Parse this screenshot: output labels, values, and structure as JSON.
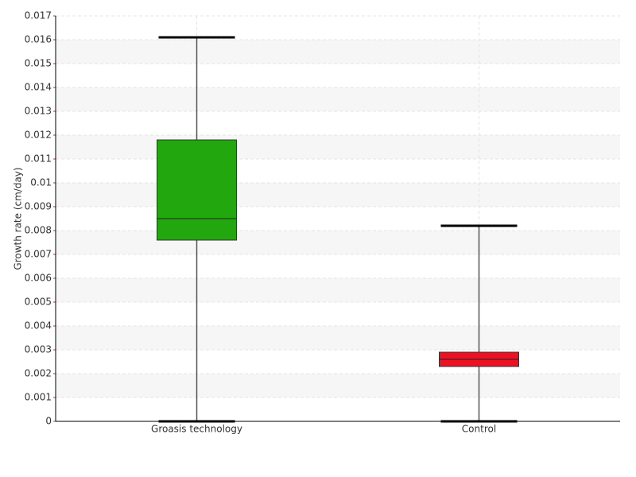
{
  "chart_data": {
    "type": "box",
    "y_label": "Growth rate (cm/day)",
    "categories": [
      "Groasis technology",
      "Control"
    ],
    "boxes": [
      {
        "min": 0,
        "q1": 0.0076,
        "median": 0.0085,
        "q3": 0.0118,
        "max": 0.0161,
        "color": "#22a80e"
      },
      {
        "min": 0,
        "q1": 0.0023,
        "median": 0.0026,
        "q3": 0.0029,
        "max": 0.0082,
        "color": "#ee1123"
      }
    ],
    "ylim": [
      0,
      0.017
    ],
    "yticks": [
      0,
      0.001,
      0.002,
      0.003,
      0.004,
      0.005,
      0.006,
      0.007,
      0.008,
      0.009,
      0.01,
      0.011,
      0.012,
      0.013,
      0.014,
      0.015,
      0.016,
      0.017
    ],
    "grid": true
  }
}
